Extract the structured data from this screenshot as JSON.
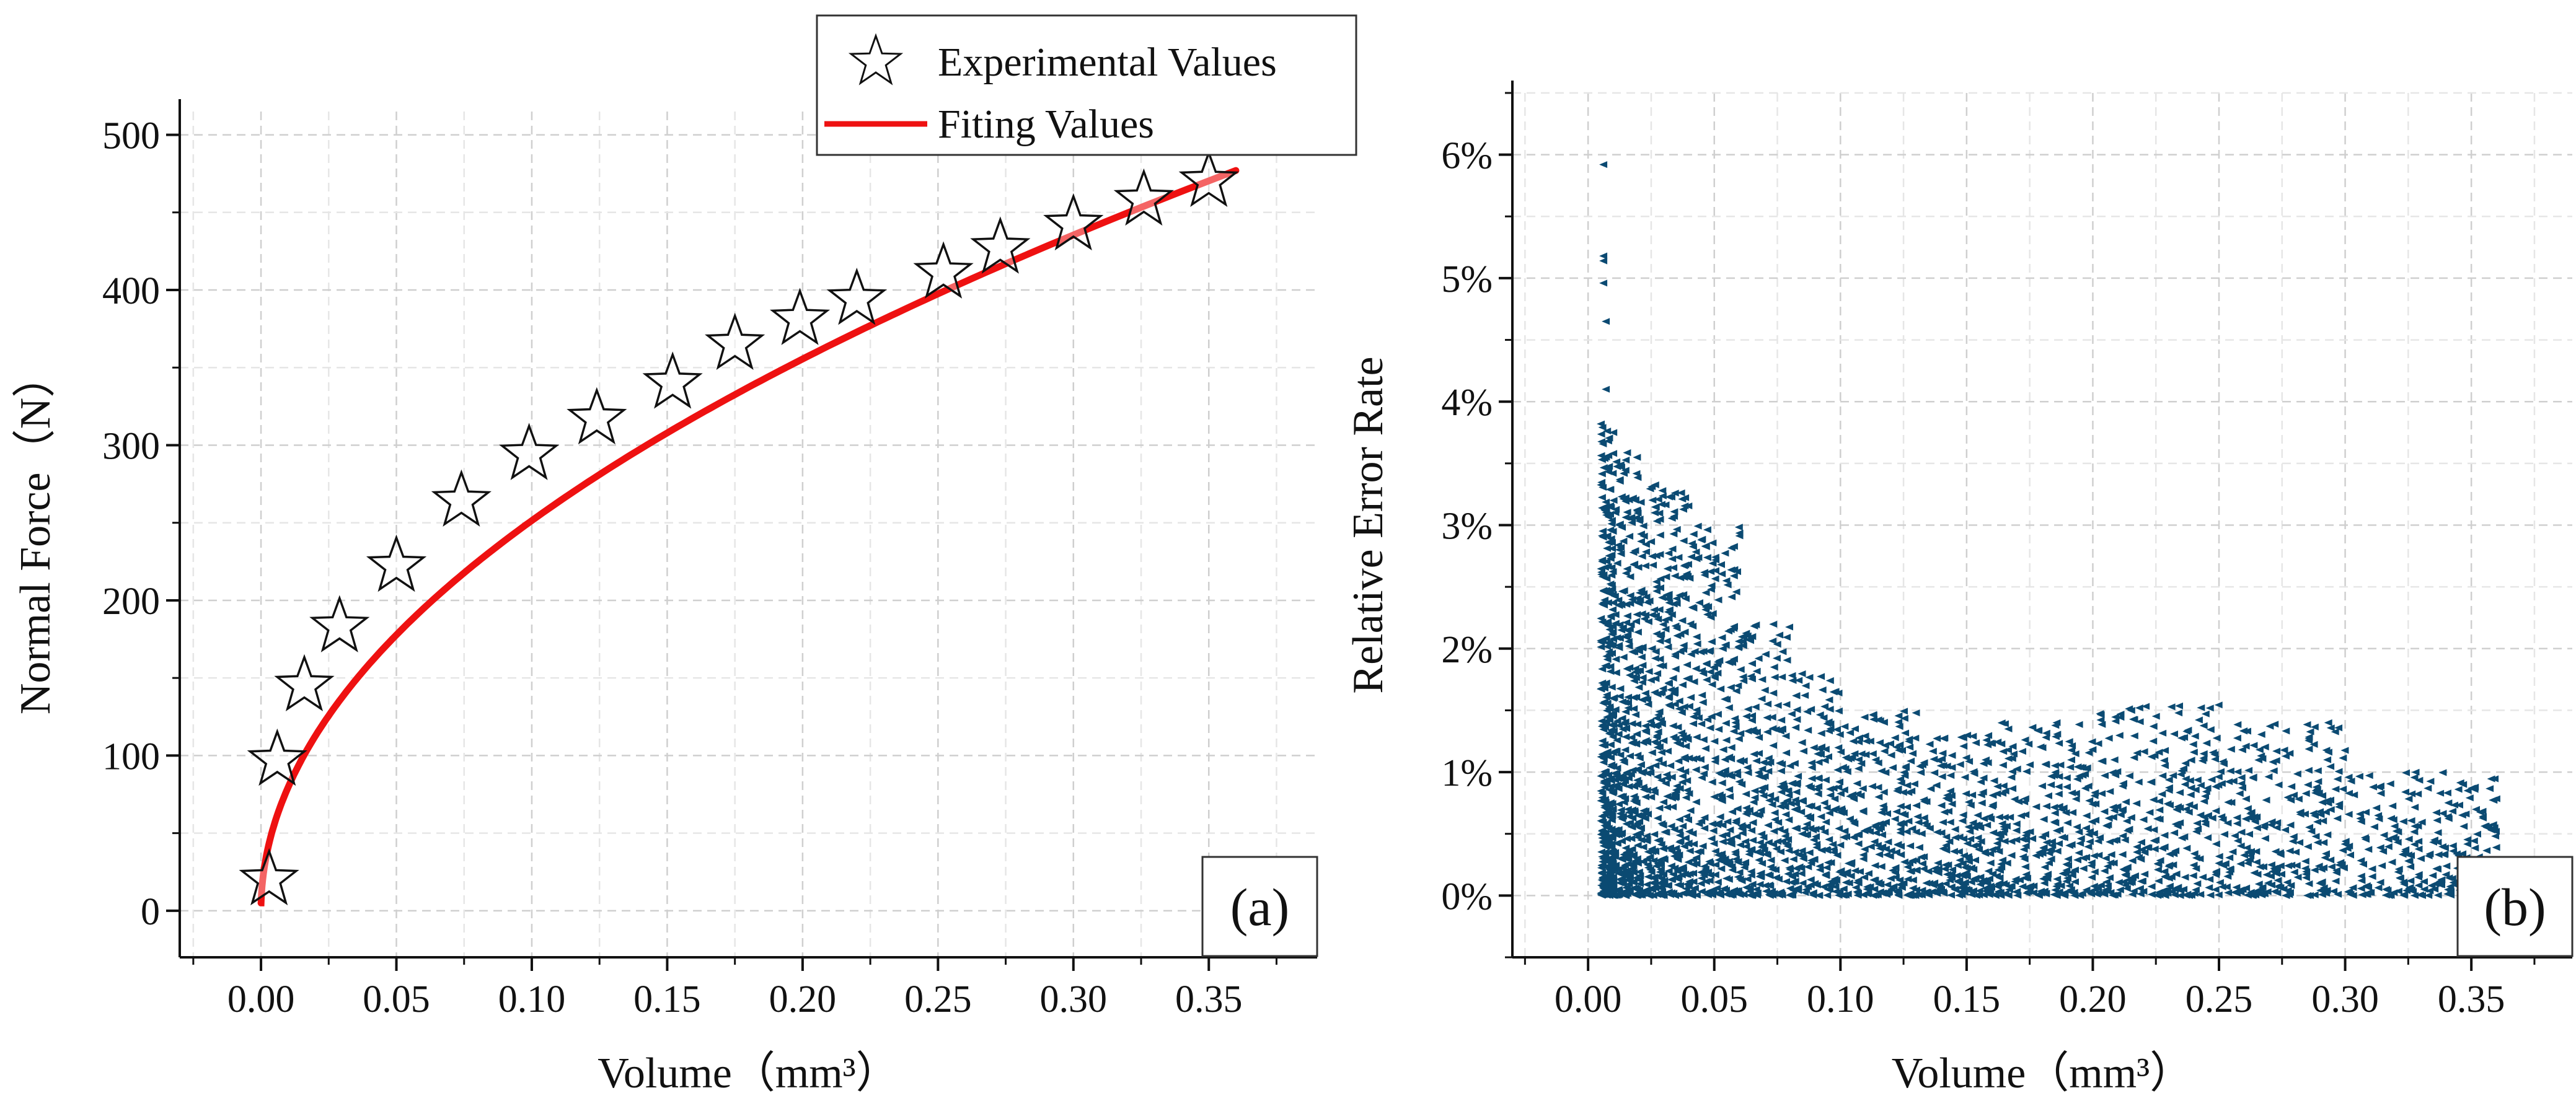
{
  "chart_data": [
    {
      "type": "scatter",
      "panel_label": "(a)",
      "xlabel": "Volume（mm³）",
      "ylabel": "Normal Force（N）",
      "xlim": [
        -0.03,
        0.39
      ],
      "ylim": [
        -30,
        515
      ],
      "xticks": [
        0.0,
        0.05,
        0.1,
        0.15,
        0.2,
        0.25,
        0.3,
        0.35
      ],
      "xtick_labels": [
        "0.00",
        "0.05",
        "0.10",
        "0.15",
        "0.20",
        "0.25",
        "0.30",
        "0.35"
      ],
      "yticks": [
        0,
        100,
        200,
        300,
        400,
        500
      ],
      "ytick_labels": [
        "0",
        "100",
        "200",
        "300",
        "400",
        "500"
      ],
      "grid": true,
      "legend_position": "top-right",
      "legend": [
        "Experimental Values",
        "Fiting Values"
      ],
      "series": [
        {
          "name": "Experimental Values",
          "type": "scatter",
          "marker": "star",
          "x": [
            0.003,
            0.006,
            0.016,
            0.029,
            0.05,
            0.074,
            0.099,
            0.124,
            0.152,
            0.175,
            0.199,
            0.22,
            0.252,
            0.273,
            0.3,
            0.326,
            0.35
          ],
          "y": [
            20,
            97,
            145,
            183,
            222,
            264,
            294,
            317,
            340,
            365,
            381,
            394,
            411,
            427,
            442,
            458,
            470
          ]
        },
        {
          "name": "Fiting Values",
          "type": "line",
          "color": "#ee1111",
          "model": "y = 795 * x^0.5",
          "x_range": [
            0.0,
            0.36
          ]
        }
      ]
    },
    {
      "type": "scatter",
      "panel_label": "(b)",
      "xlabel": "Volume（mm³）",
      "ylabel": "Relative Error Rate",
      "xlim": [
        -0.03,
        0.39
      ],
      "ylim": [
        -0.005,
        0.065
      ],
      "xticks": [
        0.0,
        0.05,
        0.1,
        0.15,
        0.2,
        0.25,
        0.3,
        0.35
      ],
      "xtick_labels": [
        "0.00",
        "0.05",
        "0.10",
        "0.15",
        "0.20",
        "0.25",
        "0.30",
        "0.35"
      ],
      "yticks": [
        0,
        0.01,
        0.02,
        0.03,
        0.04,
        0.05,
        0.06
      ],
      "ytick_labels": [
        "0%",
        "1%",
        "2%",
        "3%",
        "4%",
        "5%",
        "6%"
      ],
      "grid": true,
      "color": "#0b4a72",
      "marker": "left-triangle",
      "outliers": {
        "x": [
          0.006,
          0.006,
          0.006,
          0.006,
          0.007,
          0.007,
          0.005
        ],
        "y": [
          0.0592,
          0.0518,
          0.0514,
          0.0496,
          0.0465,
          0.041,
          0.0382
        ]
      },
      "density_bins": [
        {
          "x": [
            0.005,
            0.01
          ],
          "y_max": 0.038,
          "n": 360
        },
        {
          "x": [
            0.01,
            0.02
          ],
          "y_max": 0.036,
          "n": 300
        },
        {
          "x": [
            0.02,
            0.03
          ],
          "y_max": 0.034,
          "n": 230
        },
        {
          "x": [
            0.03,
            0.04
          ],
          "y_max": 0.033,
          "n": 190
        },
        {
          "x": [
            0.04,
            0.06
          ],
          "y_max": 0.03,
          "n": 280
        },
        {
          "x": [
            0.06,
            0.08
          ],
          "y_max": 0.022,
          "n": 220
        },
        {
          "x": [
            0.08,
            0.1
          ],
          "y_max": 0.018,
          "n": 190
        },
        {
          "x": [
            0.1,
            0.13
          ],
          "y_max": 0.015,
          "n": 240
        },
        {
          "x": [
            0.13,
            0.16
          ],
          "y_max": 0.013,
          "n": 220
        },
        {
          "x": [
            0.16,
            0.2
          ],
          "y_max": 0.014,
          "n": 270
        },
        {
          "x": [
            0.2,
            0.25
          ],
          "y_max": 0.0155,
          "n": 300
        },
        {
          "x": [
            0.25,
            0.3
          ],
          "y_max": 0.014,
          "n": 270
        },
        {
          "x": [
            0.3,
            0.36
          ],
          "y_max": 0.01,
          "n": 260
        }
      ]
    }
  ]
}
